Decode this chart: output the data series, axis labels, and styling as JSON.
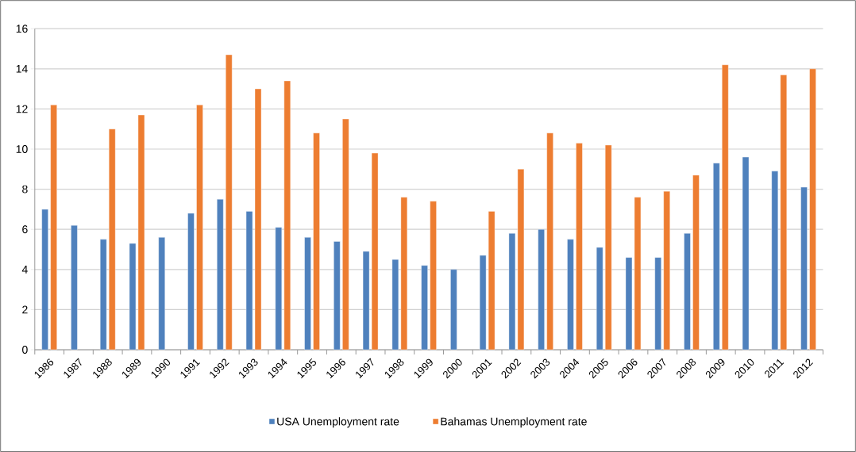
{
  "chart_data": {
    "type": "bar",
    "categories": [
      "1986",
      "1987",
      "1988",
      "1989",
      "1990",
      "1991",
      "1992",
      "1993",
      "1994",
      "1995",
      "1996",
      "1997",
      "1998",
      "1999",
      "2000",
      "2001",
      "2002",
      "2003",
      "2004",
      "2005",
      "2006",
      "2007",
      "2008",
      "2009",
      "2010",
      "2011",
      "2012"
    ],
    "series": [
      {
        "name": "USA Unemployment rate",
        "color": "#4f81bd",
        "values": [
          7.0,
          6.2,
          5.5,
          5.3,
          5.6,
          6.8,
          7.5,
          6.9,
          6.1,
          5.6,
          5.4,
          4.9,
          4.5,
          4.2,
          4.0,
          4.7,
          5.8,
          6.0,
          5.5,
          5.1,
          4.6,
          4.6,
          5.8,
          9.3,
          9.6,
          8.9,
          8.1
        ]
      },
      {
        "name": "Bahamas Unemployment rate",
        "color": "#ed7d31",
        "values": [
          12.2,
          null,
          11.0,
          11.7,
          null,
          12.2,
          14.7,
          13.0,
          13.4,
          10.8,
          11.5,
          9.8,
          7.6,
          7.4,
          null,
          6.9,
          9.0,
          10.8,
          10.3,
          10.2,
          7.6,
          7.9,
          8.7,
          14.2,
          null,
          13.7,
          14.0
        ]
      }
    ],
    "ylim": [
      0,
      16
    ],
    "yticks": [
      0,
      2,
      4,
      6,
      8,
      10,
      12,
      14,
      16
    ],
    "grid": "y",
    "legend": "bottom"
  }
}
